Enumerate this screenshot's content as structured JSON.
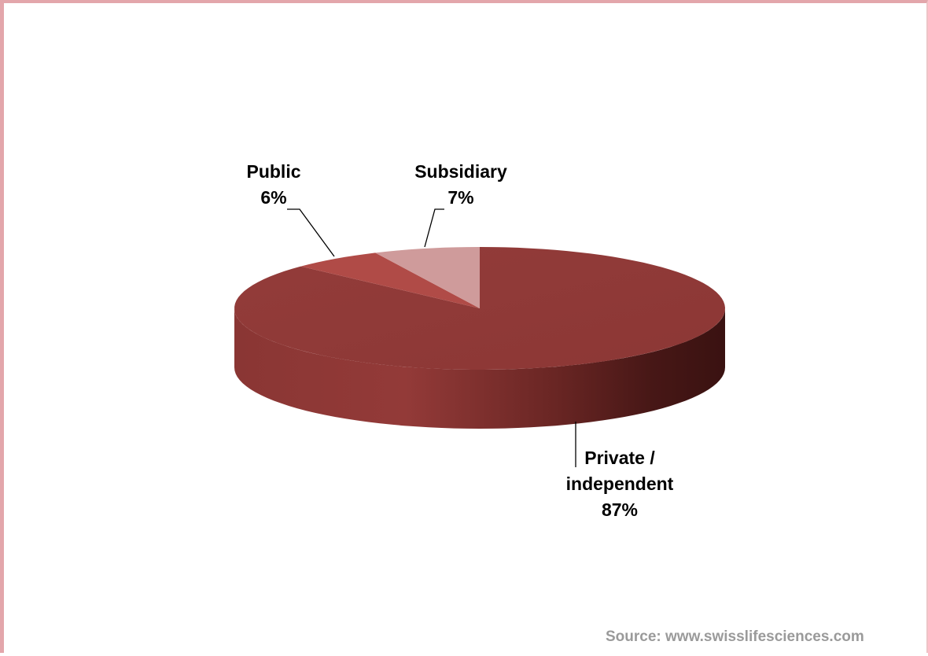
{
  "chart_data": {
    "type": "pie",
    "style": "3d-exploded",
    "categories": [
      "Private / independent",
      "Public",
      "Subsidiary"
    ],
    "values": [
      87,
      6,
      7
    ],
    "unit": "%",
    "colors": [
      "#8f3a38",
      "#b04b47",
      "#cf9b9b"
    ],
    "data_labels": [
      {
        "lines": [
          "Private /",
          "independent",
          "87%"
        ]
      },
      {
        "lines": [
          "Public",
          "6%"
        ]
      },
      {
        "lines": [
          "Subsidiary",
          "7%"
        ]
      }
    ],
    "title": "",
    "legend": "none"
  },
  "source": "Source: www.swisslifesciences.com"
}
